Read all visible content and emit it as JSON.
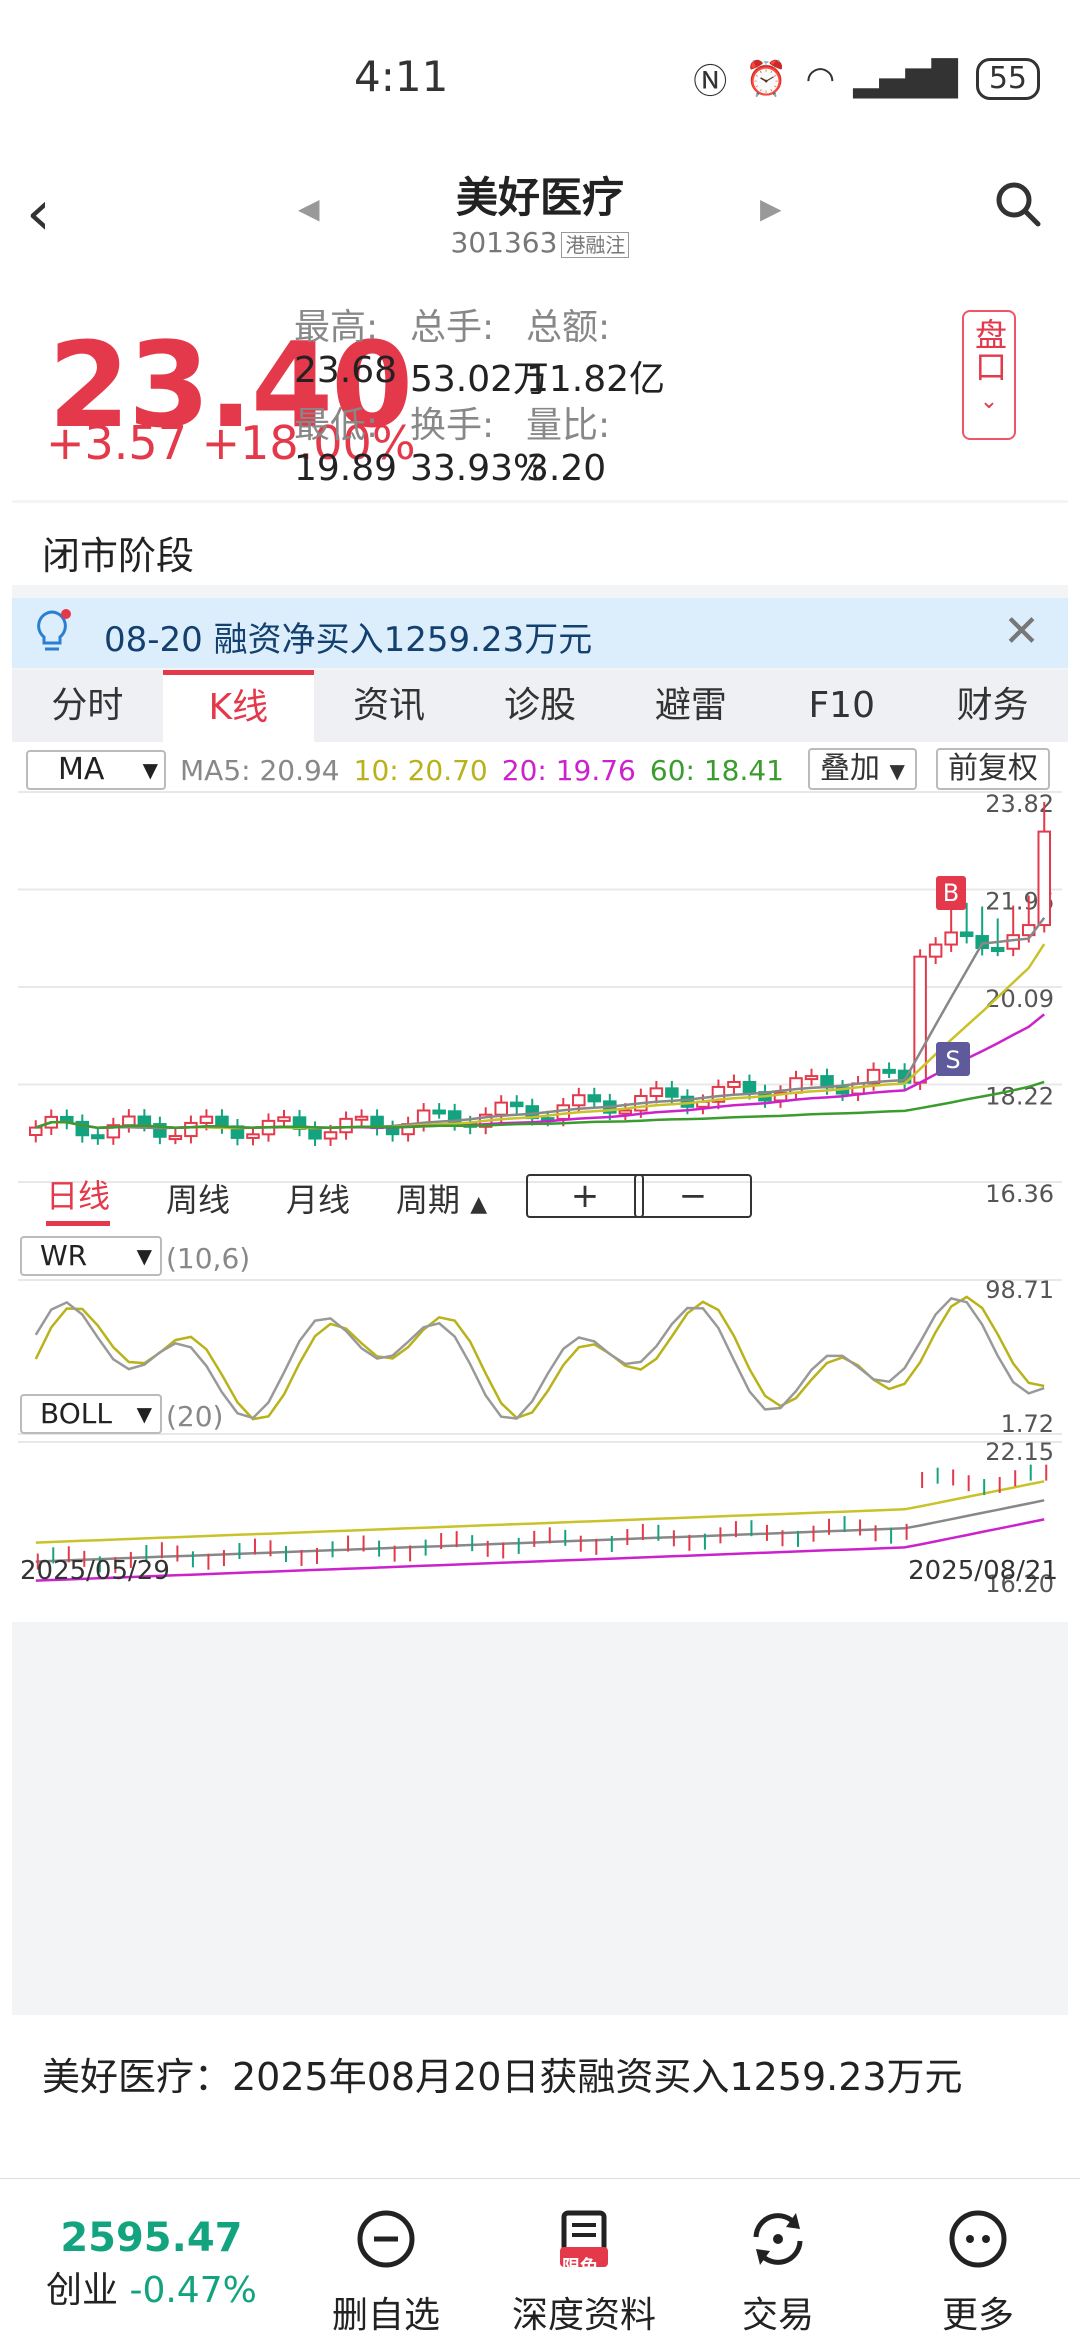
{
  "status": {
    "time": "4:11",
    "battery": "55"
  },
  "header": {
    "title": "美好医疗",
    "code": "301363",
    "tag": "港融注"
  },
  "quote": {
    "price": "23.40",
    "change": "+3.57",
    "change_pct": "+18.00%",
    "stats": [
      {
        "label": "最高:",
        "value": "23.68"
      },
      {
        "label": "总手:",
        "value": "53.02万"
      },
      {
        "label": "总额:",
        "value": "11.82亿"
      },
      {
        "label": "最低:",
        "value": "19.89"
      },
      {
        "label": "换手:",
        "value": "33.93%"
      },
      {
        "label": "量比:",
        "value": "3.20"
      }
    ],
    "pankou": "盘口"
  },
  "phase": "闭市阶段",
  "notice": {
    "text": "08-20 融资净买入1259.23万元"
  },
  "tabs": [
    "分时",
    "K线",
    "资讯",
    "诊股",
    "避雷",
    "F10",
    "财务"
  ],
  "indicators": {
    "ma_select": "MA",
    "ma5": "MA5: 20.94",
    "ma10": "10: 20.70",
    "ma20": "20: 19.76",
    "ma60": "60: 18.41",
    "overlay": "叠加",
    "fuquan": "前复权",
    "price_axis": [
      "23.82",
      "21.96",
      "20.09",
      "18.22",
      "16.36"
    ],
    "marker_b": "B",
    "marker_s": "S"
  },
  "period": {
    "daily": "日线",
    "weekly": "周线",
    "monthly": "月线",
    "cycle": "周期",
    "plus": "+",
    "minus": "−"
  },
  "wr": {
    "name": "WR",
    "param": "(10,6)",
    "top": "98.71",
    "bottom": "1.72"
  },
  "boll": {
    "name": "BOLL",
    "param": "(20)",
    "top": "22.15",
    "bottom": "16.20",
    "start_date": "2025/05/29",
    "end_date": "2025/08/21"
  },
  "news": {
    "text": "美好医疗：2025年08月20日获融资买入1259.23万元"
  },
  "bottom": {
    "index_value": "2595.47",
    "index_name": "创业",
    "index_change": "-0.47%",
    "items": [
      "删自选",
      "深度资料",
      "交易",
      "更多"
    ],
    "badge": "限免"
  },
  "colors": {
    "up": "#e3394b",
    "down": "#14a37f",
    "ma5": "#888888",
    "ma10": "#c9c22a",
    "ma20": "#cc22cc",
    "ma60": "#3b9c2e"
  }
}
